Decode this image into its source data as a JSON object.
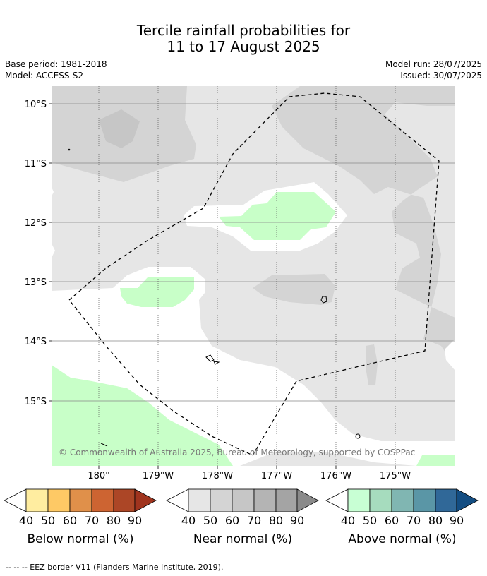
{
  "header": {
    "title_line1": "Tercile rainfall probabilities for",
    "title_line2": "11 to 17 August 2025",
    "base_period": "Base period: 1981-2018",
    "model": "Model: ACCESS-S2",
    "model_run": "Model run: 28/07/2025",
    "issued": "Issued: 30/07/2025"
  },
  "map": {
    "lat_labels": [
      "10°S",
      "11°S",
      "12°S",
      "13°S",
      "14°S",
      "15°S"
    ],
    "lon_labels": [
      "180°",
      "179°W",
      "178°W",
      "177°W",
      "176°W",
      "175°W"
    ],
    "credit": "© Commonwealth of Australia 2025, Bureau of Meteorology, supported by COSPPac",
    "colors": {
      "near_40": "#e6e6e6",
      "near_50": "#d4d4d4",
      "near_60": "#c6c6c6",
      "above_40": "#c8ffc8",
      "white": "#ffffff"
    }
  },
  "colorbars": [
    {
      "label": "Below normal (%)",
      "ticks": [
        "40",
        "50",
        "60",
        "70",
        "80",
        "90"
      ],
      "colors": [
        "#ffffff",
        "#ffeda0",
        "#fec965",
        "#e0904a",
        "#cd6432",
        "#ac4626",
        "#a0341e"
      ]
    },
    {
      "label": "Near normal (%)",
      "ticks": [
        "40",
        "50",
        "60",
        "70",
        "80",
        "90"
      ],
      "colors": [
        "#ffffff",
        "#e6e6e6",
        "#d4d4d4",
        "#c6c6c6",
        "#b4b4b4",
        "#a4a4a4",
        "#8a8a8a"
      ]
    },
    {
      "label": "Above normal (%)",
      "ticks": [
        "40",
        "50",
        "60",
        "70",
        "80",
        "90"
      ],
      "colors": [
        "#ffffff",
        "#c8ffd4",
        "#a6dcbe",
        "#80b6b2",
        "#5a96a6",
        "#306898",
        "#134d82"
      ]
    }
  ],
  "footer": "--  --  -- EEZ border V11 (Flanders Marine Institute, 2019)."
}
